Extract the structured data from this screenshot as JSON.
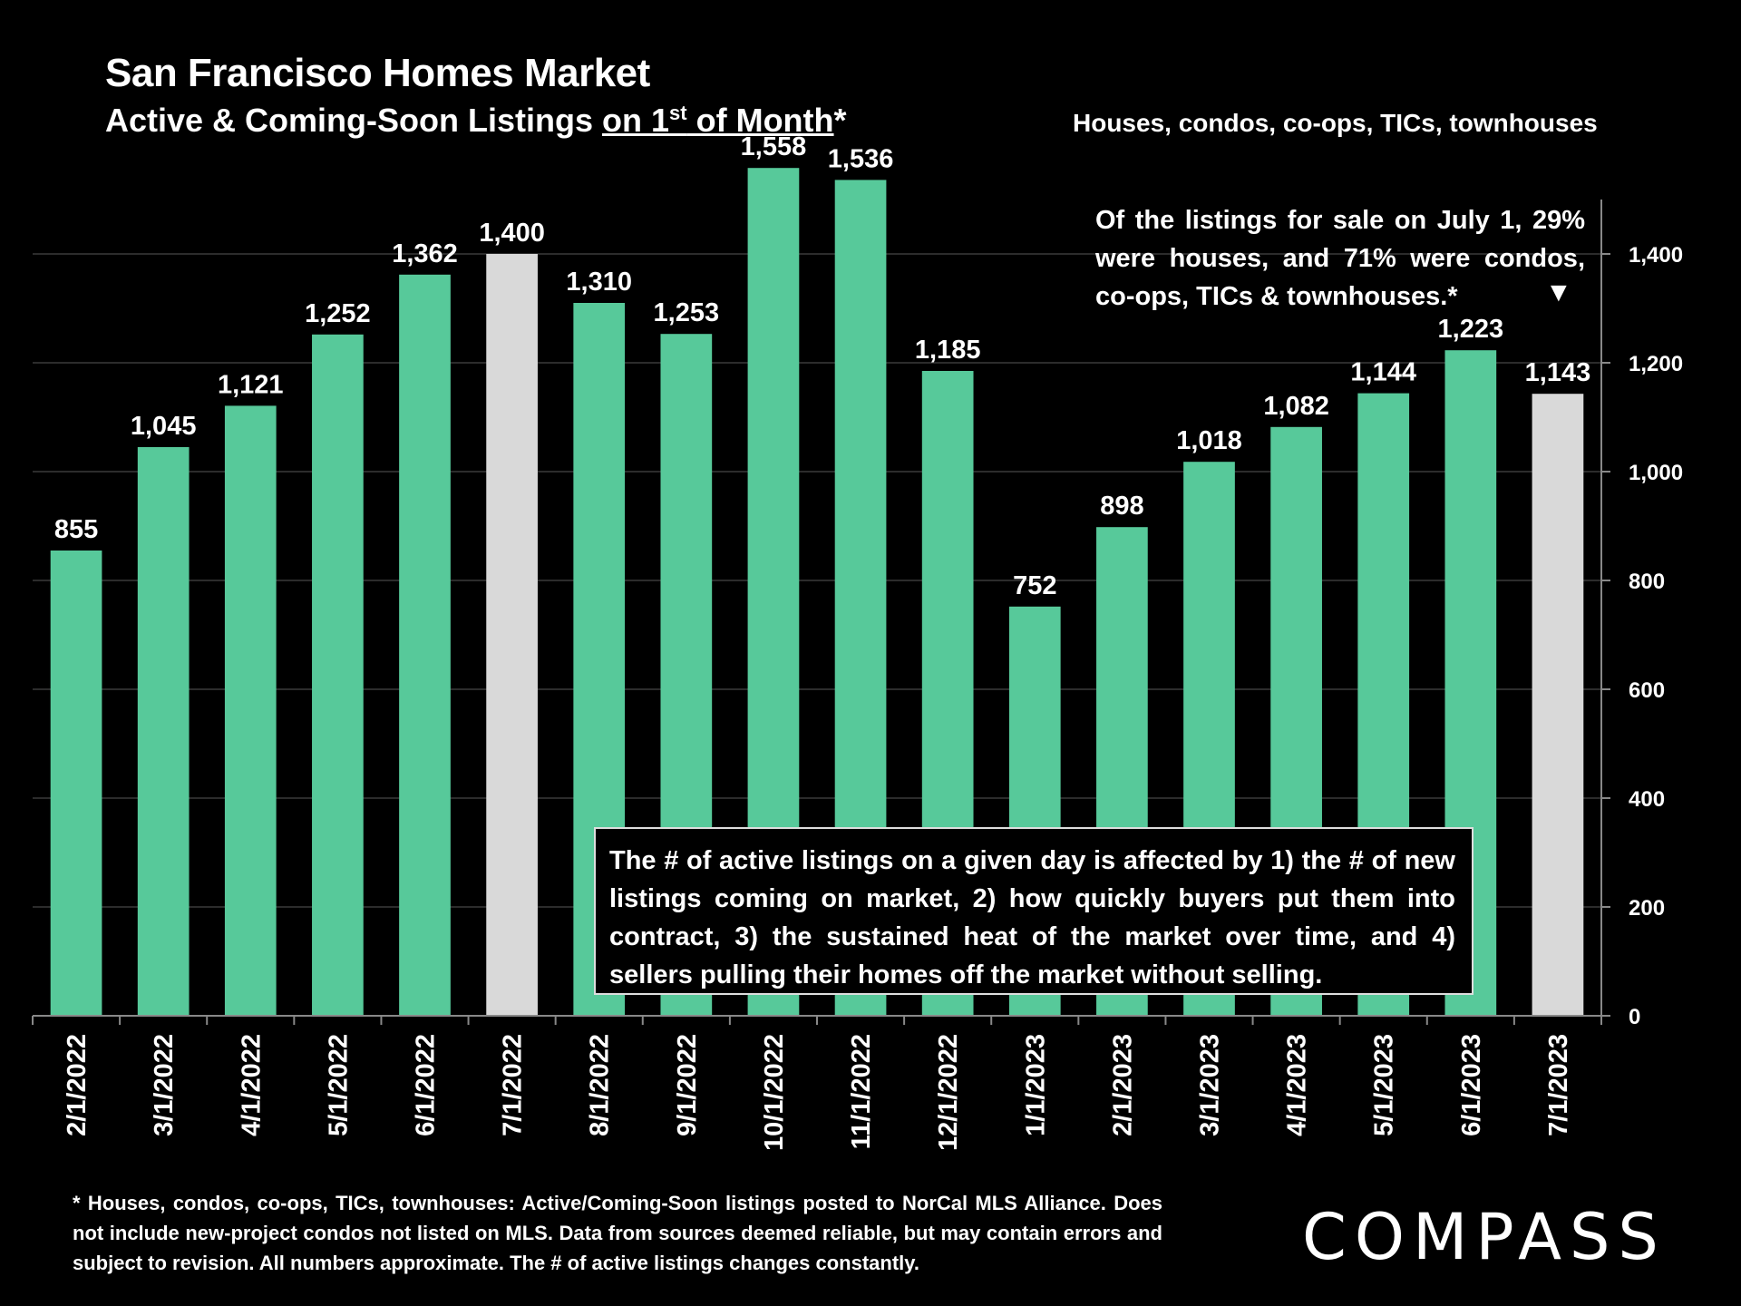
{
  "header": {
    "title": "San Francisco Homes Market",
    "subtitle_pre": "Active & Coming-Soon Listings ",
    "subtitle_u1": "on 1",
    "subtitle_sup": "st",
    "subtitle_u2": " of Month",
    "subtitle_post": "*",
    "scope": "Houses, condos, co-ops, TICs, townhouses"
  },
  "annotations": {
    "top_note": "Of the listings for sale on July 1, 29% were houses, and 71% were condos, co-ops, TICs & townhouses.*",
    "top_arrow": "▼",
    "box_note": "The # of active listings on a given day is affected by 1) the # of new listings coming on market, 2) how quickly buyers put them into contract, 3) the sustained heat of the market over time, and 4) sellers pulling their homes off the market without selling."
  },
  "footnote": "* Houses, condos, co-ops, TICs, townhouses: Active/Coming-Soon listings posted to NorCal MLS Alliance. Does not include new-project condos not listed on MLS. Data from sources deemed reliable, but may contain errors and subject to revision. All numbers approximate. The # of active listings changes constantly.",
  "brand": "COMPASS",
  "colors": {
    "bar": "#57c99a",
    "highlight": "#d9d9d9",
    "background": "#000000",
    "text": "#ffffff",
    "grid": "#3a3a3a"
  },
  "chart_data": {
    "type": "bar",
    "title": "San Francisco Homes Market",
    "categories": [
      "2/1/2022",
      "3/1/2022",
      "4/1/2022",
      "5/1/2022",
      "6/1/2022",
      "7/1/2022",
      "8/1/2022",
      "9/1/2022",
      "10/1/2022",
      "11/1/2022",
      "12/1/2022",
      "1/1/2023",
      "2/1/2023",
      "3/1/2023",
      "4/1/2023",
      "5/1/2023",
      "6/1/2023",
      "7/1/2023"
    ],
    "values": [
      855,
      1045,
      1121,
      1252,
      1362,
      1400,
      1310,
      1253,
      1558,
      1536,
      1185,
      752,
      898,
      1018,
      1082,
      1144,
      1223,
      1143
    ],
    "value_labels": [
      "855",
      "1,045",
      "1,121",
      "1,252",
      "1,362",
      "1,400",
      "1,310",
      "1,253",
      "1,558",
      "1,536",
      "1,185",
      "752",
      "898",
      "1,018",
      "1,082",
      "1,144",
      "1,223",
      "1,143"
    ],
    "highlighted": [
      "7/1/2022",
      "7/1/2023"
    ],
    "yaxis_side": "right",
    "ylim": [
      0,
      1600
    ],
    "yticks": [
      0,
      200,
      400,
      600,
      800,
      1000,
      1200,
      1400
    ],
    "ytick_labels": [
      "0",
      "200",
      "400",
      "600",
      "800",
      "1,000",
      "1,200",
      "1,400"
    ],
    "grid": true,
    "xlabel": "",
    "ylabel": ""
  }
}
